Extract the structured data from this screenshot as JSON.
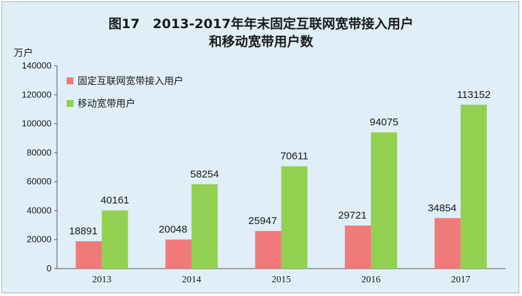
{
  "chart_data": {
    "type": "bar",
    "title_line1": "图17　2013-2017年年末固定互联网宽带接入用户",
    "title_line2": "和移动宽带用户数",
    "unit": "万户",
    "categories": [
      "2013",
      "2014",
      "2015",
      "2016",
      "2017"
    ],
    "series": [
      {
        "name": "固定互联网宽带接入用户",
        "color": "#f07a7a",
        "values": [
          18891,
          20048,
          25947,
          29721,
          34854
        ]
      },
      {
        "name": "移动宽带用户",
        "color": "#92d050",
        "values": [
          40161,
          58254,
          70611,
          94075,
          113152
        ]
      }
    ],
    "ylim": [
      0,
      140000
    ],
    "yticks": [
      0,
      20000,
      40000,
      60000,
      80000,
      100000,
      120000,
      140000
    ],
    "grid": false,
    "legend_position": "top-left"
  },
  "colors": {
    "background": "#dfeef7",
    "border": "#9fb7c9"
  }
}
